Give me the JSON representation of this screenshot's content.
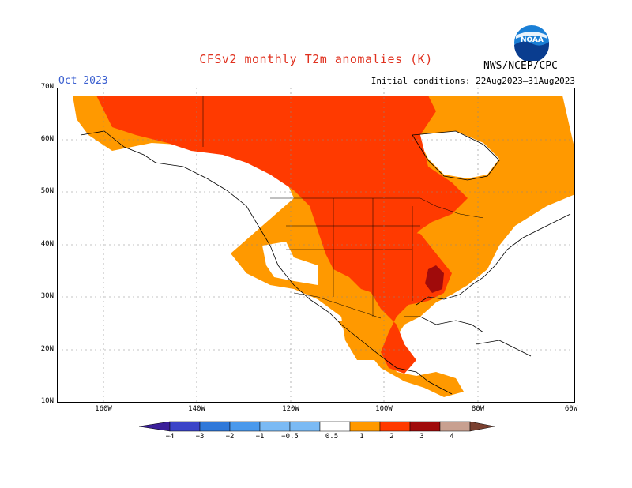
{
  "title": "CFSv2 monthly T2m anomalies (K)",
  "month": "Oct 2023",
  "initial_conditions": "Initial conditions: 22Aug2023–31Aug2023",
  "agency": "NWS/NCEP/CPC",
  "logo_text": "NOAA",
  "lat_labels": [
    "70N",
    "60N",
    "50N",
    "40N",
    "30N",
    "20N",
    "10N"
  ],
  "lon_labels": [
    "160W",
    "140W",
    "120W",
    "100W",
    "80W",
    "60W"
  ],
  "colorbar": {
    "labels": [
      "−4",
      "−3",
      "−2",
      "−1",
      "−0.5",
      "0.5",
      "1",
      "2",
      "3",
      "4"
    ],
    "colors": [
      "#3b1f9a",
      "#3b44c8",
      "#2f78d9",
      "#4a99ec",
      "#7bbaf4",
      "#ffffff",
      "#ff9900",
      "#ff3a00",
      "#a00b0b",
      "#c8a090",
      "#7a4030"
    ]
  },
  "colors": {
    "ocean": "#ffffff",
    "anom_05_1": "#ff9900",
    "anom_1_2": "#ff3a00",
    "anom_2_3": "#a00b0b"
  }
}
